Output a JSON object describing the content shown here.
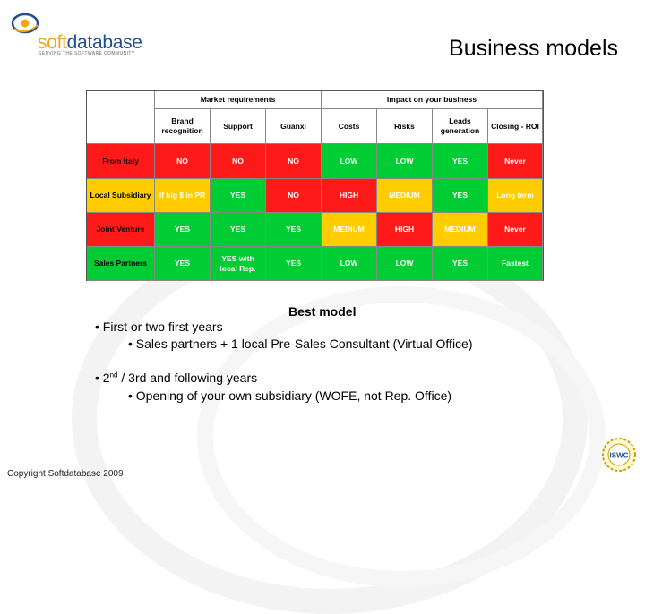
{
  "logo": {
    "soft": "soft",
    "database": "database",
    "tagline": "SERVING THE SOFTWARE COMMUNITY"
  },
  "title": "Business models",
  "table": {
    "group_headers": [
      "Market requirements",
      "Impact on your business"
    ],
    "columns": [
      "Brand recognition",
      "Support",
      "Guanxi",
      "Costs",
      "Risks",
      "Leads generation",
      "Closing - ROI"
    ],
    "rows": [
      {
        "label": "From Italy",
        "color": "red",
        "cells": [
          [
            "NO",
            "red"
          ],
          [
            "NO",
            "red"
          ],
          [
            "NO",
            "red"
          ],
          [
            "LOW",
            "grn"
          ],
          [
            "LOW",
            "grn"
          ],
          [
            "YES",
            "grn"
          ],
          [
            "Never",
            "red"
          ]
        ]
      },
      {
        "label": "Local Subsidiary",
        "color": "yel",
        "cells": [
          [
            "If big $ in PR",
            "yel"
          ],
          [
            "YES",
            "grn"
          ],
          [
            "NO",
            "red"
          ],
          [
            "HIGH",
            "red"
          ],
          [
            "MEDIUM",
            "yel"
          ],
          [
            "YES",
            "grn"
          ],
          [
            "Long term",
            "yel"
          ]
        ]
      },
      {
        "label": "Joint Venture",
        "color": "red",
        "cells": [
          [
            "YES",
            "grn"
          ],
          [
            "YES",
            "grn"
          ],
          [
            "YES",
            "grn"
          ],
          [
            "MEDIUM",
            "yel"
          ],
          [
            "HIGH",
            "red"
          ],
          [
            "MEDIUM",
            "yel"
          ],
          [
            "Never",
            "red"
          ]
        ]
      },
      {
        "label": "Sales Partners",
        "color": "grn",
        "cells": [
          [
            "YES",
            "grn"
          ],
          [
            "YES with local Rep.",
            "grn"
          ],
          [
            "YES",
            "grn"
          ],
          [
            "LOW",
            "grn"
          ],
          [
            "LOW",
            "grn"
          ],
          [
            "YES",
            "grn"
          ],
          [
            "Fastest",
            "grn"
          ]
        ]
      }
    ]
  },
  "best_model": "Best model",
  "bullets": [
    {
      "text": "• First or two first years",
      "level": 0
    },
    {
      "text": "• Sales partners + 1 local Pre-Sales Consultant (Virtual Office)",
      "level": 1
    },
    {
      "text_pre": "• 2",
      "sup": "nd",
      "text_post": " / 3rd and following years",
      "level": 0
    },
    {
      "text": "• Opening of your own subsidiary (WOFE, not Rep. Office)",
      "level": 1
    }
  ],
  "copyright": "Copyright Softdatabase 2009",
  "badge": {
    "label": "ISWC"
  },
  "colors": {
    "red": "#ff1a1a",
    "yellow": "#ffcc00",
    "green": "#00cc33",
    "logo_orange": "#f2a51a",
    "logo_blue": "#1f4f8f"
  }
}
